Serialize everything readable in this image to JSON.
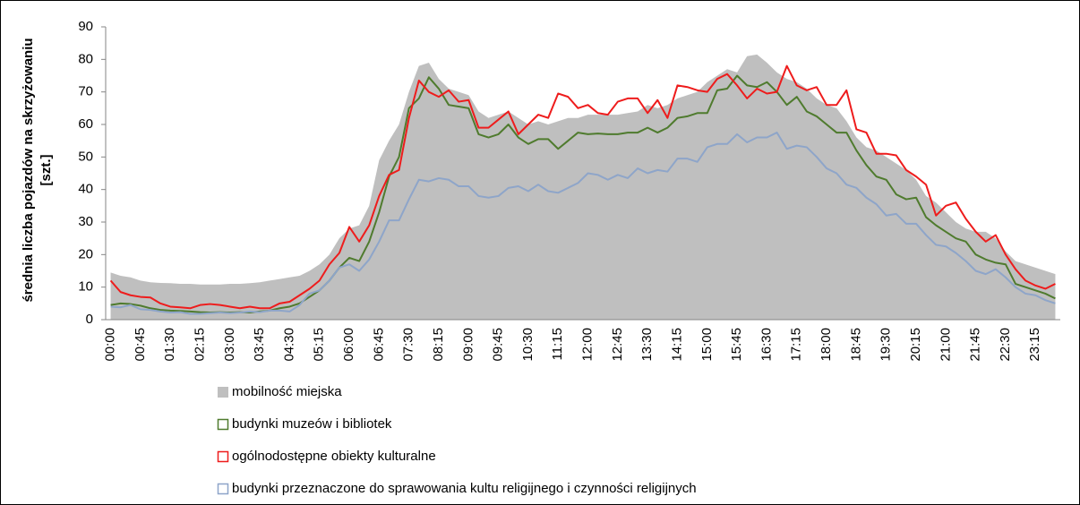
{
  "chart_data": {
    "type": "line",
    "ylabel": [
      "średnia liczba pojazdów na skrzyżowaniu",
      "[szt.]"
    ],
    "ylim": [
      0,
      90
    ],
    "yticks": [
      0,
      10,
      20,
      30,
      40,
      50,
      60,
      70,
      80,
      90
    ],
    "grid": false,
    "legend": "bottom",
    "categories": [
      "00:00",
      null,
      null,
      "00:45",
      null,
      null,
      "01:30",
      null,
      null,
      "02:15",
      null,
      null,
      "03:00",
      null,
      null,
      "03:45",
      null,
      null,
      "04:30",
      null,
      null,
      "05:15",
      null,
      null,
      "06:00",
      null,
      null,
      "06:45",
      null,
      null,
      "07:30",
      null,
      null,
      "08:15",
      null,
      null,
      "09:00",
      null,
      null,
      "09:45",
      null,
      null,
      "10:30",
      null,
      null,
      "11:15",
      null,
      null,
      "12:00",
      null,
      null,
      "12:45",
      null,
      null,
      "13:30",
      null,
      null,
      "14:15",
      null,
      null,
      "15:00",
      null,
      null,
      "15:45",
      null,
      null,
      "16:30",
      null,
      null,
      "17:15",
      null,
      null,
      "18:00",
      null,
      null,
      "18:45",
      null,
      null,
      "19:30",
      null,
      null,
      "20:15",
      null,
      null,
      "21:00",
      null,
      null,
      "21:45",
      null,
      null,
      "22:30",
      null,
      null,
      "23:15",
      null,
      null
    ],
    "series": [
      {
        "name": "mobilność miejska",
        "type": "area",
        "color": "#bfbfbf",
        "values": [
          14.5,
          13.5,
          13,
          12,
          11.5,
          11.3,
          11.2,
          11,
          11,
          10.8,
          10.8,
          10.8,
          11,
          11,
          11.2,
          11.5,
          12,
          12.5,
          13,
          13.5,
          15,
          17,
          20,
          25,
          28,
          29,
          35,
          49,
          55,
          60,
          70,
          78,
          79,
          74,
          71,
          70,
          69,
          64,
          62,
          63,
          64,
          62,
          60,
          61,
          60,
          61,
          62,
          62,
          63,
          63,
          63,
          63,
          63.5,
          64,
          66,
          65,
          66,
          68,
          69,
          70,
          73,
          75,
          77,
          76,
          81,
          81.5,
          79,
          76,
          74,
          73,
          71,
          68,
          66,
          65,
          61,
          56,
          53,
          52,
          50,
          48,
          46,
          43,
          38,
          36,
          33,
          30,
          28,
          27,
          27,
          25,
          21,
          18,
          17,
          16,
          15,
          14
        ]
      },
      {
        "name": "budynki muzeów i bibliotek",
        "type": "line",
        "color": "#4f7b2e",
        "values": [
          4.5,
          5,
          4.8,
          4.3,
          3.5,
          3,
          2.8,
          2.7,
          2.5,
          2.3,
          2.2,
          2.3,
          2.2,
          2.3,
          2.2,
          2.5,
          2.8,
          3.5,
          4,
          5,
          7,
          9,
          12,
          16,
          19,
          18,
          24,
          33,
          44,
          50,
          65,
          68,
          74.5,
          71,
          66,
          65.5,
          65,
          57,
          56,
          57,
          60,
          56,
          54,
          55.5,
          55.5,
          52.5,
          55,
          57.5,
          57,
          57.2,
          57,
          57,
          57.5,
          57.5,
          59,
          57.5,
          59,
          62,
          62.5,
          63.5,
          63.5,
          70.5,
          71,
          75,
          72,
          71.5,
          73,
          70,
          66,
          68.5,
          64,
          62.5,
          60,
          57.5,
          57.5,
          52,
          47.5,
          44,
          43,
          38.5,
          37,
          37.5,
          31.5,
          29,
          27,
          25,
          24,
          20,
          18.5,
          17.5,
          17,
          11,
          10,
          9,
          8,
          6.5
        ]
      },
      {
        "name": "ogólnodostępne obiekty kulturalne",
        "type": "line",
        "color": "#ee1c1c",
        "values": [
          12,
          8.5,
          7.5,
          7,
          6.8,
          5,
          4,
          3.8,
          3.5,
          4.5,
          4.8,
          4.5,
          4,
          3.5,
          4,
          3.5,
          3.5,
          5,
          5.5,
          7.5,
          9.5,
          12,
          17,
          20.5,
          28.5,
          24,
          29,
          38,
          44.5,
          46,
          62,
          73.5,
          70,
          68.5,
          70.5,
          67,
          67.5,
          59,
          59,
          61.5,
          64,
          57,
          60,
          63,
          62,
          69.5,
          68.5,
          65,
          66,
          63.5,
          63,
          67,
          68,
          68,
          63.5,
          67.5,
          62,
          72,
          71.5,
          70.5,
          70,
          74,
          75.5,
          72,
          68,
          71,
          69.5,
          70,
          78,
          72,
          70.5,
          71.5,
          66,
          66,
          70.5,
          58.5,
          57.5,
          51,
          51,
          50.5,
          46,
          44,
          41.5,
          32,
          35,
          36,
          31,
          27,
          24,
          26,
          20,
          15.5,
          12,
          10.5,
          9.5,
          11
        ]
      },
      {
        "name": "budynki przeznaczone do sprawowania kultu religijnego i czynności religijnych",
        "type": "line",
        "color": "#8ea5c9",
        "values": [
          4,
          3.8,
          4.5,
          3.2,
          3,
          2.5,
          2.2,
          2.3,
          1.8,
          1.8,
          2,
          2.2,
          2,
          2.2,
          2.5,
          2.3,
          2.8,
          2.8,
          2.5,
          4.5,
          8,
          9,
          12,
          16,
          17,
          15,
          18.5,
          24,
          30.5,
          30.5,
          37,
          43,
          42.5,
          43.5,
          43,
          41,
          41,
          38,
          37.5,
          38,
          40.5,
          41,
          39.5,
          41.5,
          39.5,
          39,
          40.5,
          42,
          45,
          44.5,
          43,
          44.5,
          43.5,
          46.5,
          45,
          46,
          45.5,
          49.5,
          49.5,
          48.5,
          53,
          54,
          54,
          57,
          54.5,
          56,
          56,
          57.5,
          52.5,
          53.5,
          53,
          50,
          46.5,
          45,
          41.5,
          40.5,
          37.5,
          35.5,
          32,
          32.5,
          29.5,
          29.5,
          26,
          23,
          22.5,
          20.5,
          18,
          15,
          14,
          15.5,
          13,
          10,
          8,
          7.5,
          6,
          5
        ]
      }
    ]
  }
}
